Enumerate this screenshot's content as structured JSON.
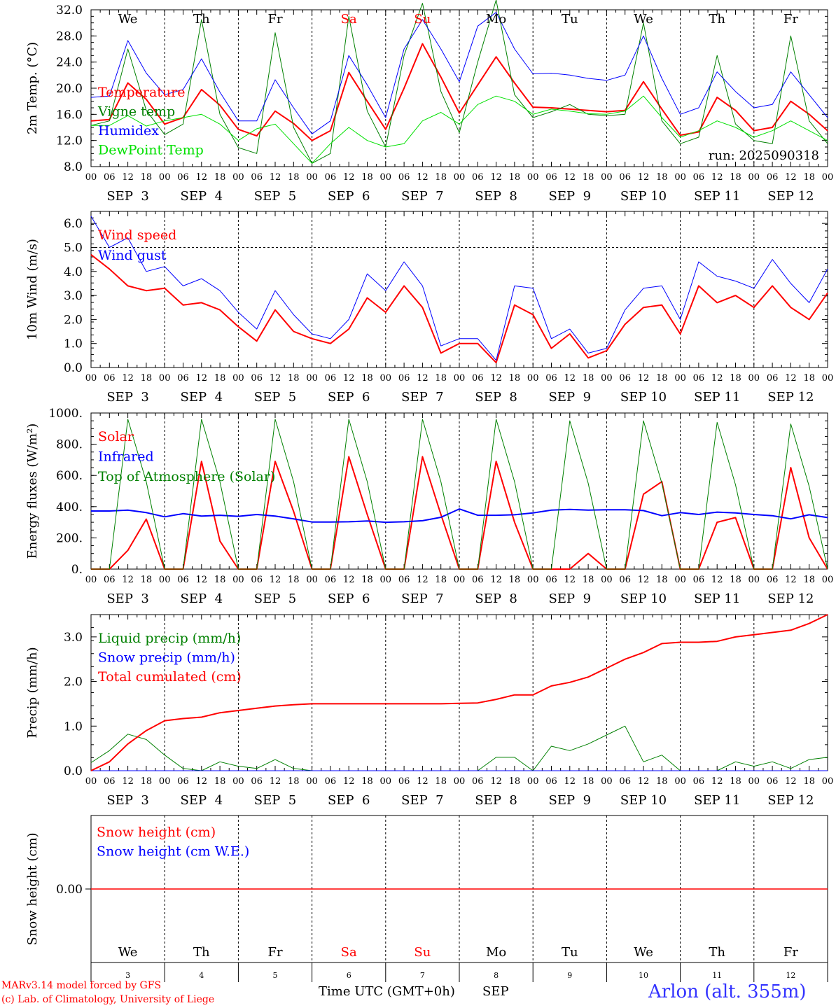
{
  "page": {
    "run_label": "run: 2025090318",
    "credit_line1": "MARv3.14 model forced by GFS",
    "credit_line2": "(c) Lab. of Climatology, University of Liege",
    "xlabel": "Time UTC (GMT+0h)",
    "month": "SEP",
    "station": "Arlon (alt. 355m)",
    "hour_ticks": [
      "00",
      "06",
      "12",
      "18"
    ],
    "day_names": [
      "We",
      "Th",
      "Fr",
      "Sa",
      "Su",
      "Mo",
      "Tu",
      "We",
      "Th",
      "Fr"
    ],
    "weekend_flags": [
      false,
      false,
      false,
      true,
      true,
      false,
      false,
      false,
      false,
      false
    ],
    "day_labels": [
      "SEP  3",
      "SEP  4",
      "SEP  5",
      "SEP  6",
      "SEP  7",
      "SEP  8",
      "SEP  9",
      "SEP 10",
      "SEP 11",
      "SEP 12"
    ],
    "day_numbers": [
      "3",
      "4",
      "5",
      "6",
      "7",
      "8",
      "9",
      "10",
      "11",
      "12"
    ],
    "colors": {
      "red": "#ff0000",
      "green": "#008000",
      "blue": "#0000ff",
      "lightgreen": "#00e000",
      "station": "#3333ff"
    }
  },
  "chart_data": [
    {
      "id": "temp",
      "type": "line",
      "ylabel": "2m Temp. (°C)",
      "ylim": [
        8,
        32
      ],
      "ticks": [
        "8.0",
        "12.0",
        "16.0",
        "20.0",
        "24.0",
        "28.0",
        "32.0"
      ],
      "x_hours": [
        0,
        6,
        12,
        18,
        24,
        30,
        36,
        42,
        48,
        54,
        60,
        66,
        72,
        78,
        84,
        90,
        96,
        102,
        108,
        114,
        120,
        126,
        132,
        138,
        144,
        150,
        156,
        162,
        168,
        174,
        180,
        186,
        192,
        198,
        204,
        210,
        216,
        222,
        228,
        234,
        240
      ],
      "series": [
        {
          "name": "Temperature",
          "color": "#ff0000",
          "width": 2,
          "values": [
            15.0,
            15.2,
            20.8,
            18.3,
            14.5,
            15.5,
            19.8,
            17.4,
            13.7,
            12.7,
            16.5,
            14.6,
            12.0,
            13.5,
            22.4,
            18.0,
            13.7,
            20.0,
            26.8,
            21.7,
            16.2,
            20.5,
            24.8,
            20.8,
            17.1,
            17.0,
            16.8,
            16.6,
            16.4,
            16.6,
            21.0,
            16.8,
            12.8,
            13.3,
            18.6,
            16.6,
            13.5,
            14.0,
            18.0,
            16.0,
            13.5
          ]
        },
        {
          "name": "Vigne temp",
          "color": "#008000",
          "width": 1,
          "values": [
            14.3,
            15.0,
            26.0,
            16.6,
            12.9,
            14.5,
            30.5,
            16.0,
            10.9,
            10.0,
            28.5,
            14.0,
            8.5,
            10.0,
            31.0,
            16.5,
            11.0,
            25.0,
            33.0,
            19.5,
            13.2,
            24.0,
            33.5,
            19.0,
            15.5,
            16.4,
            17.5,
            16.0,
            15.8,
            16.0,
            30.0,
            15.0,
            11.5,
            12.5,
            25.0,
            14.5,
            12.0,
            11.5,
            28.0,
            15.0,
            11.5
          ]
        },
        {
          "name": "Humidex",
          "color": "#0000ff",
          "width": 1,
          "values": [
            18.6,
            18.8,
            27.3,
            22.3,
            19.0,
            19.8,
            24.5,
            19.4,
            15.0,
            15.0,
            21.3,
            17.0,
            13.0,
            15.0,
            25.0,
            20.5,
            15.5,
            26.0,
            30.5,
            26.0,
            21.0,
            29.5,
            31.6,
            26.0,
            22.2,
            22.3,
            22.0,
            21.5,
            21.2,
            22.0,
            28.0,
            21.5,
            16.0,
            17.0,
            22.5,
            19.5,
            17.0,
            17.5,
            22.5,
            19.0,
            15.5
          ]
        },
        {
          "name": "DewPoint Temp",
          "color": "#00e000",
          "width": 1,
          "values": [
            14.3,
            14.3,
            15.8,
            14.2,
            15.0,
            15.5,
            16.0,
            14.5,
            12.0,
            13.8,
            14.5,
            11.5,
            8.5,
            11.5,
            14.0,
            12.0,
            11.0,
            11.5,
            15.0,
            16.3,
            14.5,
            17.5,
            18.8,
            18.0,
            16.0,
            16.8,
            16.5,
            16.1,
            16.0,
            16.5,
            18.8,
            15.5,
            12.5,
            13.5,
            15.0,
            14.0,
            12.5,
            13.5,
            15.0,
            13.5,
            12.0
          ]
        }
      ]
    },
    {
      "id": "wind",
      "type": "line",
      "ylabel": "10m Wind (m/s)",
      "ylim": [
        0,
        6.5
      ],
      "ticks": [
        "0.0",
        "1.0",
        "2.0",
        "3.0",
        "4.0",
        "5.0",
        "6.0"
      ],
      "ref_line": 5.0,
      "x_hours": [
        0,
        6,
        12,
        18,
        24,
        30,
        36,
        42,
        48,
        54,
        60,
        66,
        72,
        78,
        84,
        90,
        96,
        102,
        108,
        114,
        120,
        126,
        132,
        138,
        144,
        150,
        156,
        162,
        168,
        174,
        180,
        186,
        192,
        198,
        204,
        210,
        216,
        222,
        228,
        234,
        240
      ],
      "series": [
        {
          "name": "Wind speed",
          "color": "#ff0000",
          "width": 2,
          "values": [
            4.7,
            4.1,
            3.4,
            3.2,
            3.3,
            2.6,
            2.7,
            2.4,
            1.7,
            1.1,
            2.4,
            1.5,
            1.2,
            1.0,
            1.6,
            2.9,
            2.3,
            3.4,
            2.5,
            0.6,
            1.0,
            1.0,
            0.2,
            2.6,
            2.2,
            0.8,
            1.4,
            0.4,
            0.7,
            1.8,
            2.5,
            2.6,
            1.4,
            3.4,
            2.7,
            3.0,
            2.5,
            3.4,
            2.5,
            2.0,
            3.1
          ]
        },
        {
          "name": "Wind gust",
          "color": "#0000ff",
          "width": 1,
          "values": [
            6.3,
            5.0,
            5.4,
            4.0,
            4.2,
            3.4,
            3.7,
            3.2,
            2.3,
            1.6,
            3.2,
            2.2,
            1.4,
            1.2,
            2.0,
            3.9,
            3.2,
            4.4,
            3.4,
            0.9,
            1.2,
            1.2,
            0.3,
            3.4,
            3.3,
            1.2,
            1.6,
            0.6,
            0.8,
            2.4,
            3.3,
            3.4,
            2.0,
            4.4,
            3.8,
            3.6,
            3.3,
            4.5,
            3.5,
            2.7,
            4.1
          ]
        }
      ]
    },
    {
      "id": "energy",
      "type": "line",
      "ylabel": "Energy fluxes (W/m²)",
      "ylim": [
        0,
        1000
      ],
      "ticks": [
        "0.",
        "200.",
        "400.",
        "600.",
        "800.",
        "1000."
      ],
      "x_hours": [
        0,
        6,
        12,
        18,
        24,
        30,
        36,
        42,
        48,
        54,
        60,
        66,
        72,
        78,
        84,
        90,
        96,
        102,
        108,
        114,
        120,
        126,
        132,
        138,
        144,
        150,
        156,
        162,
        168,
        174,
        180,
        186,
        192,
        198,
        204,
        210,
        216,
        222,
        228,
        234,
        240
      ],
      "series": [
        {
          "name": "Solar",
          "color": "#ff0000",
          "width": 2,
          "values": [
            0,
            0,
            120,
            320,
            0,
            0,
            690,
            180,
            0,
            0,
            690,
            370,
            0,
            0,
            720,
            350,
            0,
            0,
            720,
            350,
            0,
            0,
            690,
            300,
            0,
            0,
            0,
            100,
            0,
            0,
            480,
            560,
            0,
            0,
            300,
            330,
            0,
            0,
            650,
            200,
            0
          ]
        },
        {
          "name": "Infrared",
          "color": "#0000ff",
          "width": 2,
          "values": [
            372,
            372,
            378,
            362,
            335,
            355,
            340,
            345,
            338,
            350,
            340,
            322,
            302,
            302,
            303,
            308,
            300,
            303,
            310,
            332,
            385,
            345,
            345,
            348,
            360,
            378,
            382,
            378,
            380,
            380,
            375,
            342,
            362,
            350,
            365,
            360,
            350,
            342,
            322,
            348,
            330
          ]
        },
        {
          "name": "Top of Atmosphere (Solar)",
          "color": "#008000",
          "width": 1,
          "values": [
            0,
            0,
            960,
            560,
            0,
            0,
            960,
            560,
            0,
            0,
            960,
            560,
            0,
            0,
            960,
            560,
            0,
            0,
            960,
            560,
            0,
            0,
            960,
            560,
            0,
            0,
            950,
            550,
            0,
            0,
            950,
            550,
            0,
            0,
            940,
            540,
            0,
            0,
            930,
            530,
            0
          ]
        }
      ]
    },
    {
      "id": "precip",
      "type": "line",
      "ylabel": "Precip (mm/h)",
      "ylim": [
        0,
        3.5
      ],
      "ticks": [
        "0.0",
        "1.0",
        "2.0",
        "3.0"
      ],
      "x_hours": [
        0,
        6,
        12,
        18,
        24,
        30,
        36,
        42,
        48,
        54,
        60,
        66,
        72,
        78,
        84,
        90,
        96,
        102,
        108,
        114,
        120,
        126,
        132,
        138,
        144,
        150,
        156,
        162,
        168,
        174,
        180,
        186,
        192,
        198,
        204,
        210,
        216,
        222,
        228,
        234,
        240
      ],
      "series": [
        {
          "name": "Liquid precip (mm/h)",
          "color": "#008000",
          "width": 1,
          "values": [
            0.18,
            0.45,
            0.82,
            0.7,
            0.35,
            0.05,
            0.0,
            0.2,
            0.1,
            0.05,
            0.25,
            0.05,
            0.0,
            0.0,
            0.0,
            0.0,
            0.0,
            0.0,
            0.0,
            0.0,
            0.0,
            0.0,
            0.3,
            0.3,
            0.0,
            0.55,
            0.45,
            0.6,
            0.8,
            1.0,
            0.2,
            0.35,
            0.0,
            0.0,
            0.0,
            0.2,
            0.1,
            0.2,
            0.05,
            0.25,
            0.3
          ]
        },
        {
          "name": "Snow precip (mm/h)",
          "color": "#0000ff",
          "width": 1,
          "values": [
            0,
            0,
            0,
            0,
            0,
            0,
            0,
            0,
            0,
            0,
            0,
            0,
            0,
            0,
            0,
            0,
            0,
            0,
            0,
            0,
            0,
            0,
            0,
            0,
            0,
            0,
            0,
            0,
            0,
            0,
            0,
            0,
            0,
            0,
            0,
            0,
            0,
            0,
            0,
            0,
            0
          ]
        },
        {
          "name": "Total cumulated (cm)",
          "color": "#ff0000",
          "width": 2,
          "values": [
            0.0,
            0.2,
            0.6,
            0.9,
            1.12,
            1.17,
            1.2,
            1.3,
            1.35,
            1.4,
            1.45,
            1.48,
            1.5,
            1.5,
            1.5,
            1.5,
            1.5,
            1.5,
            1.5,
            1.5,
            1.51,
            1.52,
            1.6,
            1.7,
            1.7,
            1.9,
            1.98,
            2.1,
            2.3,
            2.5,
            2.65,
            2.85,
            2.88,
            2.88,
            2.9,
            3.0,
            3.05,
            3.1,
            3.15,
            3.3,
            3.5
          ]
        }
      ]
    },
    {
      "id": "snow",
      "type": "line",
      "ylabel": "Snow height (cm)",
      "ylim": [
        -1,
        1
      ],
      "ticks": [
        "0.00"
      ],
      "x_hours": [
        0,
        240
      ],
      "series": [
        {
          "name": "Snow height (cm)",
          "color": "#ff0000",
          "width": 1,
          "values": [
            0,
            0
          ]
        },
        {
          "name": "Snow height (cm W.E.)",
          "color": "#0000ff",
          "width": 1,
          "values": [
            0,
            0
          ]
        }
      ]
    }
  ]
}
